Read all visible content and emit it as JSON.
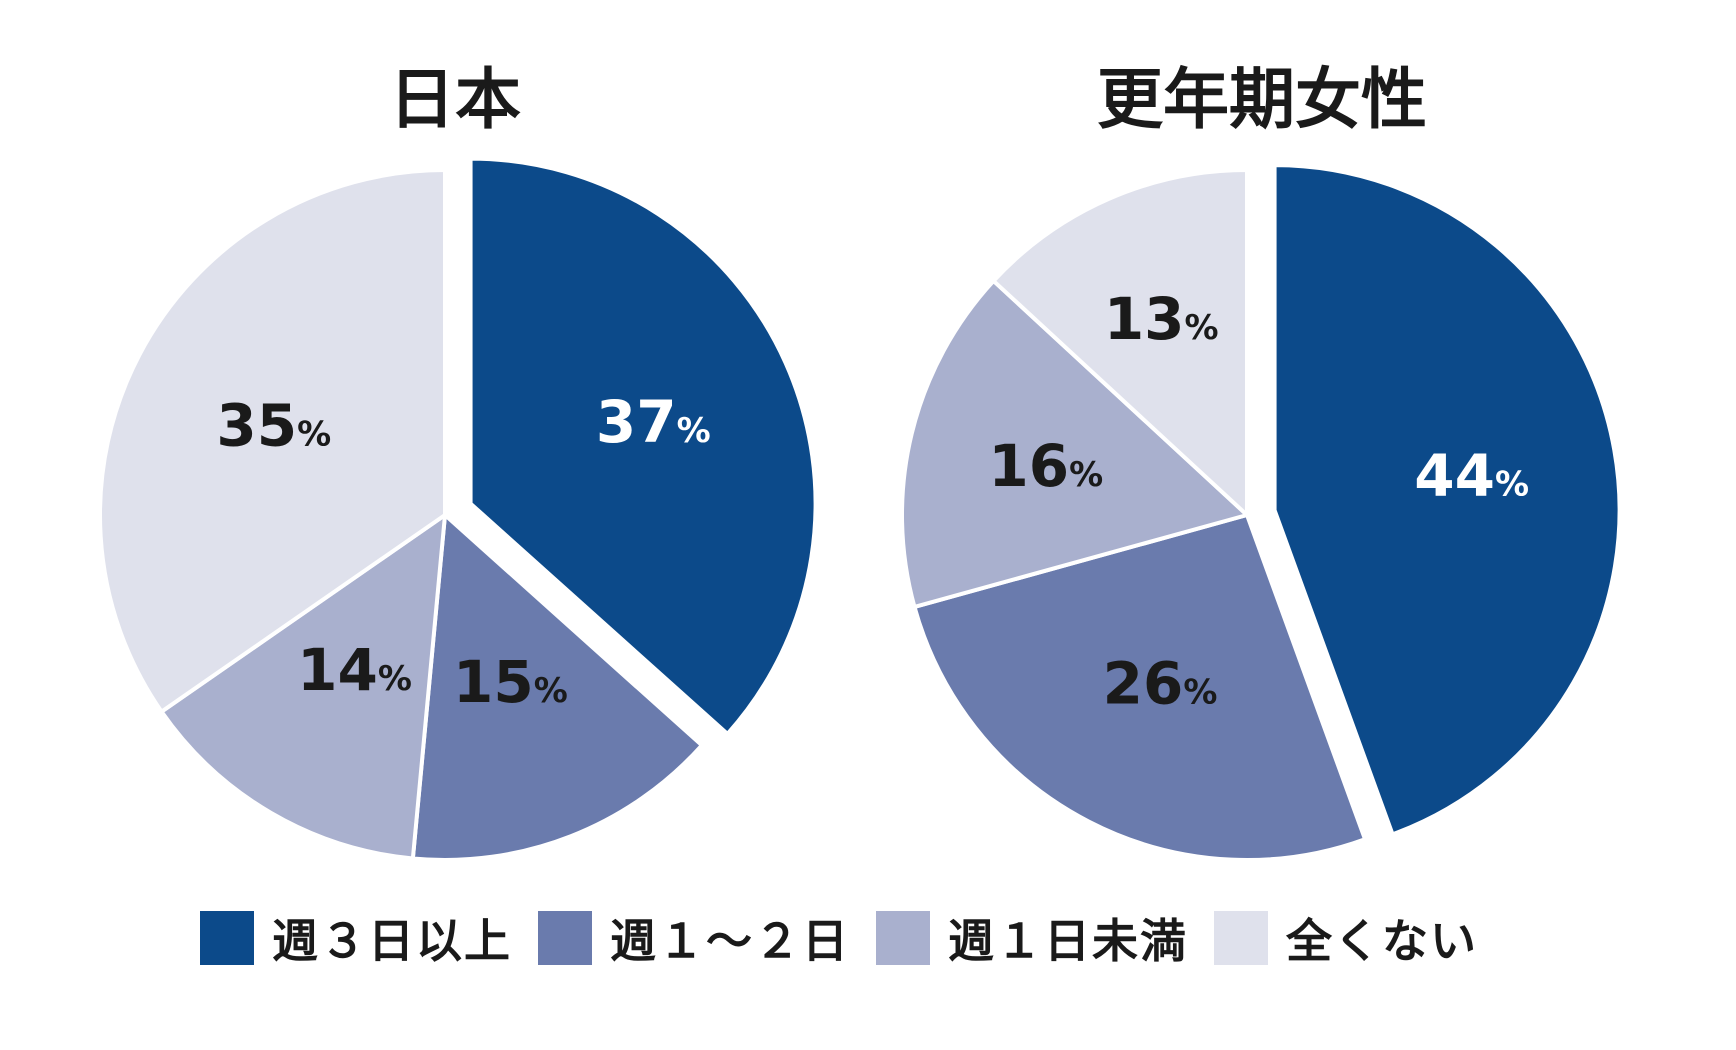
{
  "chart_data": [
    {
      "type": "pie",
      "title": "日本",
      "categories": [
        "週3日以上",
        "週1〜2日",
        "週1日未満",
        "全くない"
      ],
      "values": [
        37,
        15,
        14,
        35
      ],
      "labels": [
        "37",
        "15",
        "14",
        "35"
      ],
      "unit": "%",
      "exploded": "週3日以上"
    },
    {
      "type": "pie",
      "title": "更年期女性",
      "categories": [
        "週3日以上",
        "週1〜2日",
        "週1日未満",
        "全くない"
      ],
      "values": [
        44,
        26,
        16,
        13
      ],
      "labels": [
        "44",
        "26",
        "16",
        "13"
      ],
      "unit": "%",
      "exploded": "週3日以上"
    }
  ],
  "legend": [
    {
      "label": "週３日以上",
      "color": "#0c4a8a"
    },
    {
      "label": "週１〜２日",
      "color": "#6a7bad"
    },
    {
      "label": "週１日未満",
      "color": "#a9b0ce"
    },
    {
      "label": "全くない",
      "color": "#dfe1ec"
    }
  ],
  "colors": [
    "#0c4a8a",
    "#6a7bad",
    "#a9b0ce",
    "#dfe1ec"
  ],
  "label_colors": [
    "#ffffff",
    "#1a1a1a",
    "#1a1a1a",
    "#1a1a1a"
  ]
}
